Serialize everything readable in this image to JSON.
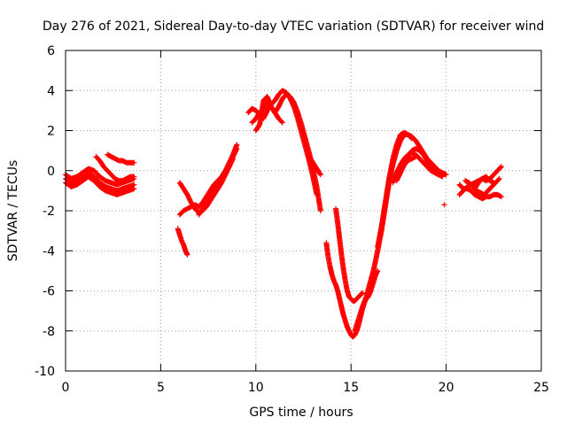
{
  "chart_data": {
    "type": "scatter",
    "title": "Day 276 of 2021, Sidereal Day-to-day VTEC variation (SDTVAR) for receiver wind",
    "xlabel": "GPS time / hours",
    "ylabel": "SDTVAR / TECUs",
    "xlim": [
      0,
      25
    ],
    "ylim": [
      -10,
      6
    ],
    "xticks": [
      0,
      5,
      10,
      15,
      20,
      25
    ],
    "yticks": [
      -10,
      -8,
      -6,
      -4,
      -2,
      0,
      2,
      4,
      6
    ],
    "xtick_labels": [
      "0",
      "5",
      "10",
      "15",
      "20",
      "25"
    ],
    "ytick_labels": [
      "-10",
      "-8",
      "-6",
      "-4",
      "-2",
      "0",
      "2",
      "4",
      "6"
    ],
    "grid": true,
    "marker": "+",
    "series_color": "#ff0000",
    "series": [
      {
        "name": "seg-a1",
        "x": [
          0.0,
          0.3,
          0.6,
          0.9,
          1.2,
          1.5,
          1.8,
          2.1,
          2.4,
          2.7,
          3.0,
          3.3,
          3.6
        ],
        "y": [
          -0.4,
          -0.6,
          -0.5,
          -0.3,
          -0.1,
          -0.3,
          -0.6,
          -0.8,
          -0.9,
          -1.0,
          -0.9,
          -0.8,
          -0.7
        ]
      },
      {
        "name": "seg-a2",
        "x": [
          0.0,
          0.3,
          0.6,
          0.9,
          1.2,
          1.5,
          1.8,
          2.1,
          2.4,
          2.7,
          3.0,
          3.3,
          3.6
        ],
        "y": [
          -0.2,
          -0.4,
          -0.3,
          -0.1,
          0.1,
          0.0,
          -0.3,
          -0.5,
          -0.6,
          -0.7,
          -0.6,
          -0.5,
          -0.4
        ]
      },
      {
        "name": "seg-a3",
        "x": [
          0.0,
          0.3,
          0.6,
          0.9,
          1.2,
          1.5,
          1.8,
          2.1,
          2.4,
          2.7,
          3.0,
          3.3,
          3.6
        ],
        "y": [
          -0.6,
          -0.8,
          -0.7,
          -0.5,
          -0.3,
          -0.5,
          -0.8,
          -1.0,
          -1.1,
          -1.2,
          -1.1,
          -1.0,
          -0.9
        ]
      },
      {
        "name": "seg-a4",
        "x": [
          2.2,
          2.4,
          2.6,
          2.8,
          3.0,
          3.2,
          3.4,
          3.6
        ],
        "y": [
          0.8,
          0.7,
          0.6,
          0.5,
          0.5,
          0.4,
          0.4,
          0.4
        ]
      },
      {
        "name": "seg-a5",
        "x": [
          1.6,
          1.8,
          2.0,
          2.2,
          2.4,
          2.6,
          2.8,
          3.0,
          3.2,
          3.4,
          3.6
        ],
        "y": [
          0.7,
          0.5,
          0.2,
          0.0,
          -0.2,
          -0.4,
          -0.5,
          -0.5,
          -0.4,
          -0.3,
          -0.3
        ]
      },
      {
        "name": "seg-b1",
        "x": [
          5.9,
          6.0,
          6.1,
          6.2,
          6.3,
          6.4
        ],
        "y": [
          -2.9,
          -3.2,
          -3.5,
          -3.7,
          -4.0,
          -4.2
        ]
      },
      {
        "name": "seg-b2",
        "x": [
          6.0,
          6.2,
          6.4,
          6.6,
          6.8,
          7.0,
          7.2,
          7.4,
          7.6,
          7.8,
          8.0,
          8.2,
          8.4,
          8.6,
          8.8,
          9.0
        ],
        "y": [
          -2.2,
          -2.0,
          -1.9,
          -1.8,
          -1.7,
          -1.8,
          -1.6,
          -1.3,
          -1.0,
          -0.7,
          -0.5,
          -0.3,
          0.0,
          0.4,
          0.8,
          1.3
        ]
      },
      {
        "name": "seg-b3",
        "x": [
          6.0,
          6.2,
          6.4,
          6.6,
          6.8,
          7.0,
          7.2,
          7.4,
          7.6,
          7.8,
          8.0,
          8.2,
          8.4,
          8.6,
          8.8
        ],
        "y": [
          -0.6,
          -0.9,
          -1.2,
          -1.6,
          -1.9,
          -2.1,
          -2.0,
          -1.8,
          -1.5,
          -1.2,
          -0.9,
          -0.6,
          -0.2,
          0.2,
          0.6
        ]
      },
      {
        "name": "seg-b4",
        "x": [
          7.0,
          7.2,
          7.4,
          7.6,
          7.8,
          8.0,
          8.2,
          8.4,
          8.6,
          8.8,
          9.0
        ],
        "y": [
          -2.2,
          -1.9,
          -1.6,
          -1.3,
          -1.0,
          -0.7,
          -0.4,
          -0.1,
          0.3,
          0.7,
          1.1
        ]
      },
      {
        "name": "seg-c1",
        "x": [
          9.6,
          9.8,
          10.0,
          10.2,
          10.4,
          10.6,
          10.8,
          11.0,
          11.2,
          11.4,
          11.6,
          11.8,
          12.0,
          12.2,
          12.4,
          12.6,
          12.8,
          13.0,
          13.2
        ],
        "y": [
          2.9,
          3.1,
          3.0,
          2.8,
          2.6,
          3.0,
          3.3,
          3.5,
          3.8,
          4.0,
          3.9,
          3.6,
          3.2,
          2.6,
          1.9,
          1.2,
          0.5,
          -0.3,
          -1.2
        ]
      },
      {
        "name": "seg-c2",
        "x": [
          10.0,
          10.2,
          10.4,
          10.6,
          10.8,
          11.0,
          11.2,
          11.4,
          11.6,
          11.8,
          12.0,
          12.2,
          12.4,
          12.6,
          12.8,
          13.0,
          13.2,
          13.4
        ],
        "y": [
          2.0,
          2.3,
          3.5,
          3.7,
          3.2,
          2.9,
          3.2,
          3.6,
          3.8,
          3.7,
          3.4,
          2.9,
          2.3,
          1.6,
          0.9,
          0.1,
          -0.8,
          -2.0
        ]
      },
      {
        "name": "seg-c3",
        "x": [
          9.8,
          10.0,
          10.2,
          10.4,
          10.6,
          10.8,
          11.0,
          11.2,
          11.4
        ],
        "y": [
          2.4,
          2.6,
          2.9,
          3.1,
          3.4,
          3.2,
          2.9,
          2.6,
          2.4
        ]
      },
      {
        "name": "seg-c4",
        "x": [
          12.8,
          13.0,
          13.2,
          13.4
        ],
        "y": [
          0.7,
          0.4,
          0.1,
          -0.2
        ]
      },
      {
        "name": "seg-d1",
        "x": [
          13.7,
          13.8,
          13.9,
          14.0,
          14.1,
          14.2,
          14.3,
          14.4,
          14.5,
          14.6,
          14.7,
          14.8,
          14.9,
          15.0,
          15.1,
          15.2,
          15.3,
          15.4,
          15.5,
          15.6,
          15.7,
          15.8,
          15.9,
          16.0,
          16.1,
          16.2,
          16.3,
          16.4
        ],
        "y": [
          -3.6,
          -4.3,
          -4.8,
          -5.2,
          -5.5,
          -5.7,
          -6.0,
          -6.4,
          -6.8,
          -7.2,
          -7.5,
          -7.8,
          -8.0,
          -8.2,
          -8.3,
          -8.2,
          -8.0,
          -7.7,
          -7.3,
          -6.9,
          -6.6,
          -6.4,
          -6.3,
          -6.1,
          -5.8,
          -5.5,
          -5.2,
          -5.0
        ]
      },
      {
        "name": "seg-d2",
        "x": [
          14.2,
          14.3,
          14.4,
          14.5,
          14.6,
          14.7,
          14.8,
          14.9,
          15.0,
          15.1,
          15.2,
          15.3,
          15.4,
          15.5,
          15.6
        ],
        "y": [
          -1.9,
          -2.6,
          -3.4,
          -4.2,
          -4.9,
          -5.5,
          -6.0,
          -6.3,
          -6.4,
          -6.5,
          -6.5,
          -6.4,
          -6.3,
          -6.2,
          -6.1
        ]
      },
      {
        "name": "seg-d3",
        "x": [
          15.2,
          15.4,
          15.6,
          15.8,
          16.0,
          16.2,
          16.4,
          16.6,
          16.8,
          17.0,
          17.2,
          17.4,
          17.6,
          17.8,
          18.0,
          18.2
        ],
        "y": [
          -8.0,
          -7.4,
          -6.8,
          -6.3,
          -5.6,
          -4.9,
          -4.0,
          -3.0,
          -1.8,
          -0.6,
          0.3,
          1.0,
          1.5,
          1.8,
          1.8,
          1.6
        ]
      },
      {
        "name": "seg-e1",
        "x": [
          16.4,
          16.6,
          16.8,
          17.0,
          17.2,
          17.4,
          17.6,
          17.8,
          18.0,
          18.2,
          18.4,
          18.6,
          18.8,
          19.0,
          19.2,
          19.4,
          19.6,
          19.8,
          20.0
        ],
        "y": [
          -3.8,
          -2.8,
          -1.6,
          -0.4,
          0.6,
          1.3,
          1.8,
          1.9,
          1.8,
          1.7,
          1.5,
          1.2,
          0.9,
          0.6,
          0.4,
          0.2,
          0.0,
          -0.1,
          -0.2
        ]
      },
      {
        "name": "seg-e2",
        "x": [
          17.2,
          17.4,
          17.6,
          17.8,
          18.0,
          18.2,
          18.4,
          18.6,
          18.8,
          19.0,
          19.2,
          19.4,
          19.6,
          19.8
        ],
        "y": [
          -0.6,
          -0.1,
          0.3,
          0.6,
          0.8,
          0.9,
          0.8,
          0.6,
          0.4,
          0.2,
          0.0,
          -0.1,
          -0.2,
          -0.3
        ]
      },
      {
        "name": "seg-e3",
        "x": [
          17.8,
          18.0,
          18.2,
          18.4,
          18.6,
          18.8,
          19.0,
          19.2,
          19.4,
          19.6,
          19.8
        ],
        "y": [
          0.3,
          0.7,
          1.0,
          1.1,
          1.0,
          0.8,
          0.5,
          0.2,
          -0.1,
          -0.2,
          -0.2
        ]
      },
      {
        "name": "seg-e4",
        "x": [
          17.4,
          17.6,
          17.8,
          18.0,
          18.2,
          18.4
        ],
        "y": [
          -0.5,
          -0.1,
          0.3,
          0.5,
          0.6,
          0.7
        ]
      },
      {
        "name": "outlier",
        "x": [
          19.9
        ],
        "y": [
          -1.7
        ]
      },
      {
        "name": "seg-f1",
        "x": [
          20.7,
          20.9,
          21.1,
          21.3,
          21.5,
          21.7,
          21.9,
          22.1,
          22.3,
          22.5,
          22.7,
          22.9
        ],
        "y": [
          -1.2,
          -1.0,
          -0.8,
          -0.7,
          -0.6,
          -0.5,
          -0.4,
          -0.5,
          -0.4,
          -0.2,
          0.0,
          0.2
        ]
      },
      {
        "name": "seg-f2",
        "x": [
          20.7,
          20.9,
          21.1,
          21.3,
          21.5,
          21.7,
          21.9,
          22.1,
          22.3,
          22.5,
          22.7,
          22.9
        ],
        "y": [
          -0.7,
          -0.9,
          -0.9,
          -1.0,
          -1.2,
          -1.3,
          -1.4,
          -1.3,
          -1.3,
          -1.2,
          -1.2,
          -1.3
        ]
      },
      {
        "name": "seg-f3",
        "x": [
          21.0,
          21.2,
          21.4,
          21.6,
          21.8,
          22.0,
          22.2,
          22.4,
          22.6,
          22.8
        ],
        "y": [
          -0.5,
          -0.6,
          -0.8,
          -1.0,
          -1.1,
          -1.2,
          -1.0,
          -0.8,
          -0.6,
          -0.4
        ]
      },
      {
        "name": "seg-f4",
        "x": [
          21.5,
          21.7,
          21.9,
          22.1,
          22.3,
          22.5
        ],
        "y": [
          -0.9,
          -0.6,
          -0.4,
          -0.3,
          -0.5,
          -0.6
        ]
      }
    ]
  }
}
